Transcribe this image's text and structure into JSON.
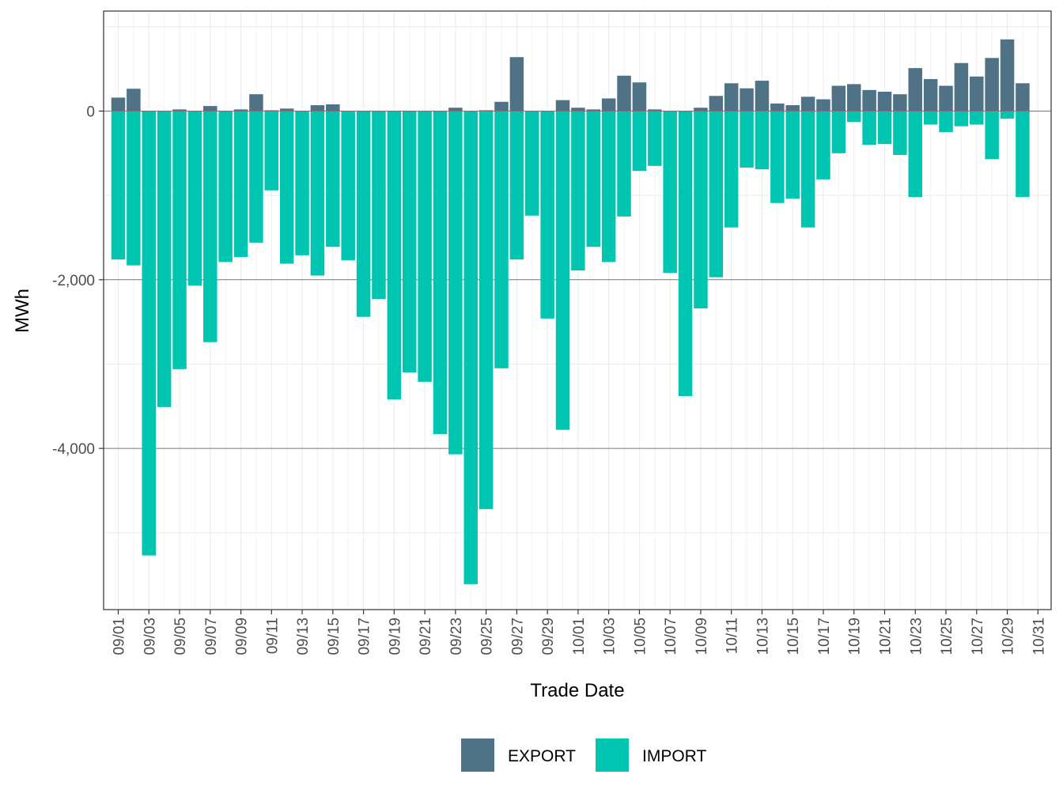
{
  "chart_data": {
    "type": "bar",
    "stacking": "diverging",
    "title": "",
    "xlabel": "Trade Date",
    "ylabel": "MWh",
    "ylim": [
      -5850,
      1000
    ],
    "yticks": [
      {
        "value": -4000,
        "label": "-4,000"
      },
      {
        "value": -2000,
        "label": "-2,000"
      },
      {
        "value": 0,
        "label": "0"
      }
    ],
    "grid": true,
    "legend_position": "bottom",
    "categories": [
      "09/01",
      "09/02",
      "09/03",
      "09/04",
      "09/05",
      "09/06",
      "09/07",
      "09/08",
      "09/09",
      "09/10",
      "09/11",
      "09/12",
      "09/13",
      "09/14",
      "09/15",
      "09/16",
      "09/17",
      "09/18",
      "09/19",
      "09/20",
      "09/21",
      "09/22",
      "09/23",
      "09/24",
      "09/25",
      "09/26",
      "09/27",
      "09/28",
      "09/29",
      "09/30",
      "10/01",
      "10/02",
      "10/03",
      "10/04",
      "10/05",
      "10/06",
      "10/07",
      "10/08",
      "10/09",
      "10/10",
      "10/11",
      "10/12",
      "10/13",
      "10/14",
      "10/15",
      "10/16",
      "10/17",
      "10/18",
      "10/19",
      "10/20",
      "10/21",
      "10/22",
      "10/23",
      "10/24",
      "10/25",
      "10/26",
      "10/27",
      "10/28",
      "10/29",
      "10/30",
      "10/31"
    ],
    "tick_labels": [
      "09/01",
      "09/03",
      "09/05",
      "09/07",
      "09/09",
      "09/11",
      "09/13",
      "09/15",
      "09/17",
      "09/19",
      "09/21",
      "09/23",
      "09/25",
      "09/27",
      "09/29",
      "10/01",
      "10/03",
      "10/05",
      "10/07",
      "10/09",
      "10/11",
      "10/13",
      "10/15",
      "10/17",
      "10/19",
      "10/21",
      "10/23",
      "10/25",
      "10/27",
      "10/29",
      "10/31"
    ],
    "series": [
      {
        "name": "EXPORT",
        "color": "#4f7287",
        "values": [
          160,
          265,
          0,
          0,
          20,
          0,
          60,
          0,
          20,
          200,
          10,
          30,
          0,
          70,
          80,
          0,
          0,
          0,
          0,
          0,
          0,
          0,
          40,
          0,
          10,
          110,
          640,
          0,
          0,
          130,
          40,
          20,
          150,
          420,
          340,
          20,
          0,
          0,
          40,
          180,
          330,
          270,
          360,
          90,
          70,
          170,
          140,
          300,
          320,
          250,
          230,
          200,
          510,
          380,
          300,
          570,
          410,
          630,
          850,
          330,
          0
        ]
      },
      {
        "name": "IMPORT",
        "color": "#00c6b1",
        "values": [
          -1760,
          -1830,
          -5270,
          -3510,
          -3060,
          -2070,
          -2740,
          -1790,
          -1730,
          -1560,
          -940,
          -1810,
          -1710,
          -1950,
          -1610,
          -1770,
          -2440,
          -2230,
          -3420,
          -3100,
          -3210,
          -3830,
          -4070,
          -5610,
          -4720,
          -3050,
          -1760,
          -1240,
          -2460,
          -3780,
          -1890,
          -1610,
          -1790,
          -1250,
          -710,
          -650,
          -1920,
          -3380,
          -2340,
          -1970,
          -1380,
          -670,
          -690,
          -1090,
          -1040,
          -1380,
          -810,
          -500,
          -130,
          -400,
          -390,
          -520,
          -1020,
          -160,
          -250,
          -180,
          -160,
          -570,
          -90,
          -1020,
          0
        ]
      }
    ]
  }
}
